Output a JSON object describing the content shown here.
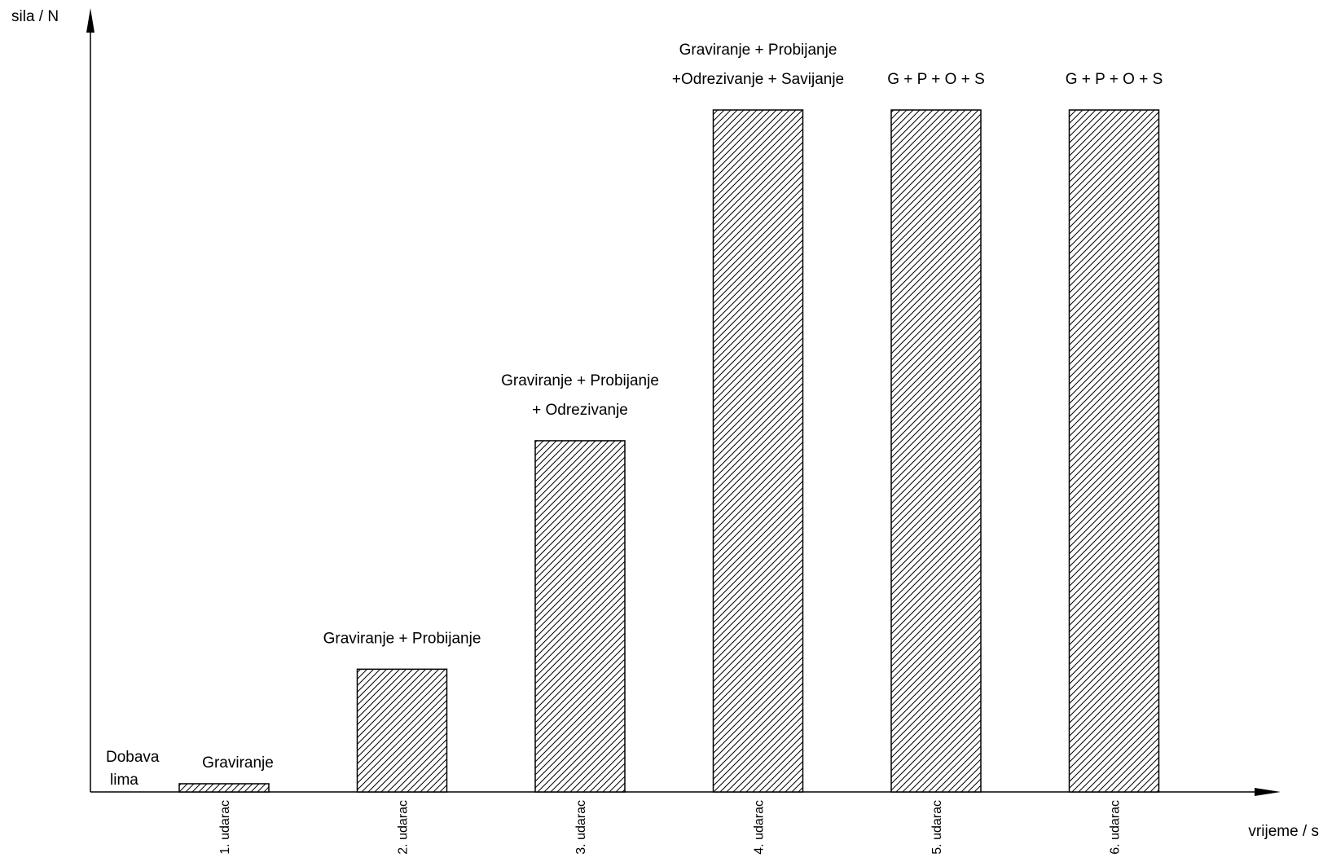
{
  "chart_data": {
    "type": "bar",
    "ylabel": "sila / N",
    "xlabel": "vrijeme / s",
    "grid": false,
    "legend": false,
    "fill_pattern": "diagonal-hatch",
    "colors": {
      "stroke": "#000000",
      "fill": "#ffffff"
    },
    "start_note": [
      "Dobava",
      "lima"
    ],
    "categories": [
      "1. udarac",
      "2. udarac",
      "3. udarac",
      "4. udarac",
      "5. udarac",
      "6. udarac"
    ],
    "values": [
      1.2,
      18,
      51.5,
      100,
      100,
      100
    ],
    "annotations": [
      [
        "Graviranje"
      ],
      [
        "Graviranje + Probijanje"
      ],
      [
        "Graviranje + Probijanje",
        "+ Odrezivanje"
      ],
      [
        "Graviranje + Probijanje",
        "+Odrezivanje + Savijanje"
      ],
      [
        "G + P + O + S"
      ],
      [
        "G + P + O + S"
      ]
    ]
  }
}
